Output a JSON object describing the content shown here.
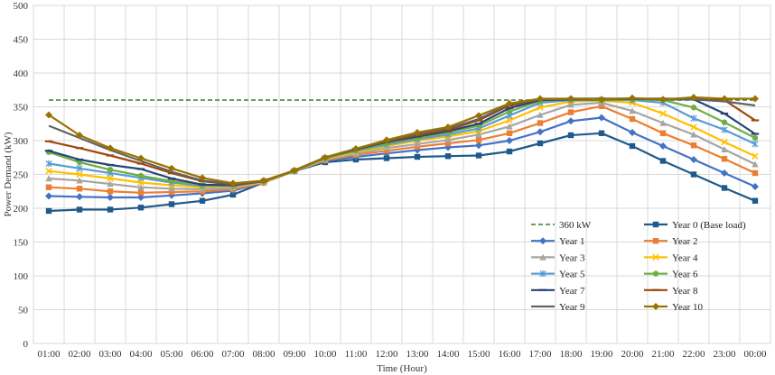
{
  "chart_data": {
    "type": "line",
    "xlabel": "Time (Hour)",
    "ylabel": "Power Demand (kW)",
    "ylim": [
      0,
      500
    ],
    "yticks": [
      0,
      50,
      100,
      150,
      200,
      250,
      300,
      350,
      400,
      450,
      500
    ],
    "grid": true,
    "legend_placement": "bottom-right",
    "categories": [
      "01:00",
      "02:00",
      "03:00",
      "04:00",
      "05:00",
      "06:00",
      "07:00",
      "08:00",
      "09:00",
      "10:00",
      "11:00",
      "12:00",
      "13:00",
      "14:00",
      "15:00",
      "16:00",
      "17:00",
      "18:00",
      "19:00",
      "20:00",
      "21:00",
      "22:00",
      "23:00",
      "00:00"
    ],
    "reference_line": {
      "name": "360 kW",
      "value": 360,
      "color": "#3a7d2c",
      "style": "dashed"
    },
    "series": [
      {
        "name": "Year 0 (Base load)",
        "color": "#1f5a8a",
        "marker": "square",
        "values": [
          196,
          198,
          198,
          201,
          206,
          211,
          220,
          238,
          255,
          268,
          272,
          274,
          276,
          277,
          278,
          284,
          296,
          308,
          311,
          292,
          270,
          250,
          230,
          211
        ]
      },
      {
        "name": "Year 1",
        "color": "#4472c4",
        "marker": "diamond",
        "values": [
          218,
          217,
          216,
          216,
          219,
          222,
          226,
          238,
          255,
          270,
          276,
          281,
          286,
          290,
          293,
          300,
          313,
          329,
          334,
          312,
          292,
          272,
          252,
          232
        ]
      },
      {
        "name": "Year 2",
        "color": "#ed7d31",
        "marker": "square",
        "values": [
          231,
          229,
          225,
          223,
          224,
          225,
          228,
          238,
          255,
          271,
          279,
          285,
          291,
          296,
          301,
          311,
          326,
          342,
          351,
          332,
          311,
          293,
          273,
          252
        ]
      },
      {
        "name": "Year 3",
        "color": "#a5a5a5",
        "marker": "triangle",
        "values": [
          244,
          241,
          236,
          231,
          229,
          228,
          230,
          239,
          255,
          272,
          281,
          289,
          295,
          301,
          309,
          321,
          338,
          353,
          356,
          344,
          326,
          309,
          287,
          265
        ]
      },
      {
        "name": "Year 4",
        "color": "#ffc000",
        "marker": "x",
        "values": [
          255,
          250,
          244,
          238,
          234,
          231,
          232,
          239,
          255,
          273,
          283,
          292,
          300,
          306,
          314,
          330,
          349,
          358,
          359,
          356,
          340,
          320,
          298,
          277
        ]
      },
      {
        "name": "Year 5",
        "color": "#5b9bd5",
        "marker": "asterisk",
        "values": [
          266,
          259,
          252,
          245,
          238,
          233,
          233,
          240,
          255,
          274,
          285,
          294,
          302,
          309,
          318,
          337,
          356,
          360,
          360,
          360,
          356,
          333,
          316,
          295
        ]
      },
      {
        "name": "Year 6",
        "color": "#70ad47",
        "marker": "circle",
        "values": [
          283,
          268,
          257,
          248,
          240,
          234,
          234,
          240,
          255,
          274,
          286,
          296,
          304,
          312,
          322,
          343,
          359,
          361,
          360,
          361,
          360,
          349,
          327,
          304
        ]
      },
      {
        "name": "Year 7",
        "color": "#264478",
        "marker": "dash",
        "values": [
          285,
          272,
          264,
          258,
          244,
          235,
          234,
          240,
          256,
          275,
          287,
          298,
          306,
          314,
          325,
          348,
          360,
          361,
          361,
          362,
          361,
          361,
          340,
          310
        ]
      },
      {
        "name": "Year 8",
        "color": "#9e480e",
        "marker": "dash",
        "values": [
          299,
          289,
          278,
          266,
          252,
          240,
          235,
          240,
          256,
          275,
          288,
          299,
          308,
          316,
          330,
          352,
          361,
          362,
          362,
          362,
          362,
          362,
          360,
          330
        ]
      },
      {
        "name": "Year 9",
        "color": "#636363",
        "marker": "none",
        "values": [
          322,
          304,
          286,
          270,
          254,
          241,
          236,
          240,
          256,
          275,
          288,
          300,
          310,
          318,
          332,
          354,
          361,
          362,
          362,
          362,
          362,
          361,
          358,
          352
        ]
      },
      {
        "name": "Year 10",
        "color": "#997300",
        "marker": "diamond",
        "values": [
          338,
          308,
          289,
          274,
          259,
          245,
          237,
          241,
          256,
          275,
          288,
          301,
          312,
          320,
          337,
          355,
          362,
          362,
          361,
          363,
          361,
          364,
          362,
          362
        ]
      }
    ]
  }
}
